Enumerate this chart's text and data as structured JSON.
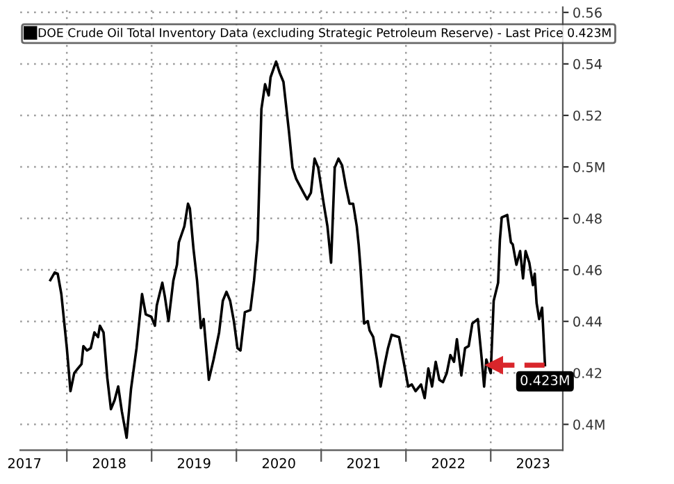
{
  "chart_data": {
    "type": "line",
    "x": [
      2017.805,
      2017.857,
      2017.892,
      2017.935,
      2018.0,
      2018.043,
      2018.087,
      2018.13,
      2018.173,
      2018.195,
      2018.238,
      2018.282,
      2018.325,
      2018.368,
      2018.39,
      2018.433,
      2018.477,
      2018.52,
      2018.563,
      2018.606,
      2018.649,
      2018.705,
      2018.757,
      2018.822,
      2018.887,
      2018.931,
      2018.996,
      2019.039,
      2019.061,
      2019.126,
      2019.156,
      2019.199,
      2019.256,
      2019.299,
      2019.321,
      2019.386,
      2019.429,
      2019.451,
      2019.494,
      2019.536,
      2019.581,
      2019.614,
      2019.675,
      2019.731,
      2019.796,
      2019.84,
      2019.883,
      2019.926,
      2019.97,
      2020.013,
      2020.048,
      2020.1,
      2020.165,
      2020.208,
      2020.251,
      2020.295,
      2020.338,
      2020.381,
      2020.403,
      2020.468,
      2020.511,
      2020.555,
      2020.62,
      2020.662,
      2020.706,
      2020.792,
      2020.835,
      2020.879,
      2020.922,
      2020.965,
      2021.03,
      2021.074,
      2021.117,
      2021.16,
      2021.204,
      2021.247,
      2021.29,
      2021.334,
      2021.377,
      2021.42,
      2021.442,
      2021.463,
      2021.506,
      2021.549,
      2021.571,
      2021.614,
      2021.658,
      2021.701,
      2021.744,
      2021.788,
      2021.831,
      2021.918,
      2021.983,
      2022.026,
      2022.069,
      2022.113,
      2022.178,
      2022.221,
      2022.264,
      2022.308,
      2022.351,
      2022.394,
      2022.437,
      2022.481,
      2022.524,
      2022.567,
      2022.601,
      2022.653,
      2022.697,
      2022.74,
      2022.783,
      2022.848,
      2022.892,
      2022.922,
      2022.948,
      2023.0,
      2023.035,
      2023.087,
      2023.108,
      2023.13,
      2023.195,
      2023.238,
      2023.26,
      2023.303,
      2023.347,
      2023.381,
      2023.411,
      2023.455,
      2023.498,
      2023.519,
      2023.541,
      2023.571,
      2023.606,
      2023.64
    ],
    "series": [
      {
        "name": "DOE Crude Oil Total Inventory Data (excluding Strategic Petroleum Reserve) - Last Price 0.423M",
        "color": "#000000",
        "values": [
          0.456,
          0.459,
          0.4585,
          0.4506,
          0.4296,
          0.4129,
          0.4199,
          0.4217,
          0.4234,
          0.4304,
          0.4287,
          0.4296,
          0.4357,
          0.4339,
          0.4383,
          0.4357,
          0.4181,
          0.4059,
          0.4094,
          0.4147,
          0.405,
          0.3948,
          0.4138,
          0.4296,
          0.4506,
          0.4427,
          0.4418,
          0.4383,
          0.4462,
          0.455,
          0.4497,
          0.4401,
          0.4558,
          0.462,
          0.4707,
          0.4769,
          0.4857,
          0.4839,
          0.4681,
          0.4558,
          0.4374,
          0.4409,
          0.4173,
          0.4252,
          0.4357,
          0.448,
          0.4515,
          0.448,
          0.4401,
          0.4296,
          0.4287,
          0.4436,
          0.4444,
          0.4558,
          0.4716,
          0.5225,
          0.5321,
          0.5278,
          0.5348,
          0.5409,
          0.5365,
          0.533,
          0.5137,
          0.4997,
          0.4953,
          0.49,
          0.4874,
          0.49,
          0.5032,
          0.4997,
          0.4857,
          0.4769,
          0.4628,
          0.4997,
          0.5032,
          0.5006,
          0.4926,
          0.4857,
          0.4857,
          0.4769,
          0.4699,
          0.4611,
          0.4392,
          0.4401,
          0.4365,
          0.4339,
          0.4252,
          0.4147,
          0.4225,
          0.4296,
          0.4348,
          0.4339,
          0.4225,
          0.4147,
          0.4155,
          0.4129,
          0.4155,
          0.4102,
          0.4217,
          0.4147,
          0.4243,
          0.4173,
          0.4164,
          0.4199,
          0.4269,
          0.4243,
          0.4331,
          0.419,
          0.4296,
          0.4304,
          0.4392,
          0.4409,
          0.426,
          0.4147,
          0.4252,
          0.4199,
          0.448,
          0.455,
          0.4716,
          0.4804,
          0.4813,
          0.4707,
          0.4699,
          0.462,
          0.4673,
          0.4567,
          0.4673,
          0.4628,
          0.4541,
          0.4585,
          0.4471,
          0.4409,
          0.4453,
          0.423
        ]
      },
      {
        "type": "line",
        "color": "#d9262b",
        "line_style": "dashed",
        "x": [
          2023.043,
          2023.64
        ],
        "values": [
          0.423,
          0.423
        ]
      }
    ],
    "xlim": [
      2017.45,
      2023.85
    ],
    "xticks": [
      {
        "value": 2018,
        "label": null
      },
      {
        "value": 2019,
        "label": null
      },
      {
        "value": 2020,
        "label": null
      },
      {
        "value": 2021,
        "label": null
      },
      {
        "value": 2022,
        "label": null
      },
      {
        "value": 2023,
        "label": null
      },
      {
        "value": 2017.5,
        "label": "2017"
      },
      {
        "value": 2018.5,
        "label": "2018"
      },
      {
        "value": 2019.5,
        "label": "2019"
      },
      {
        "value": 2020.5,
        "label": "2020"
      },
      {
        "value": 2021.5,
        "label": "2021"
      },
      {
        "value": 2022.5,
        "label": "2022"
      },
      {
        "value": 2023.5,
        "label": "2023"
      }
    ],
    "ylim": [
      0.39,
      0.562
    ],
    "yticks": [
      {
        "value": 0.4,
        "label": "0.4M"
      },
      0.42,
      0.44,
      0.46,
      0.48,
      {
        "value": 0.5,
        "label": "0.5M"
      },
      0.52,
      0.54,
      0.56
    ],
    "annotations": [
      {
        "text": "0.423M",
        "x": 2023.64,
        "y": 0.423
      }
    ],
    "grid": true,
    "legend": "top"
  }
}
